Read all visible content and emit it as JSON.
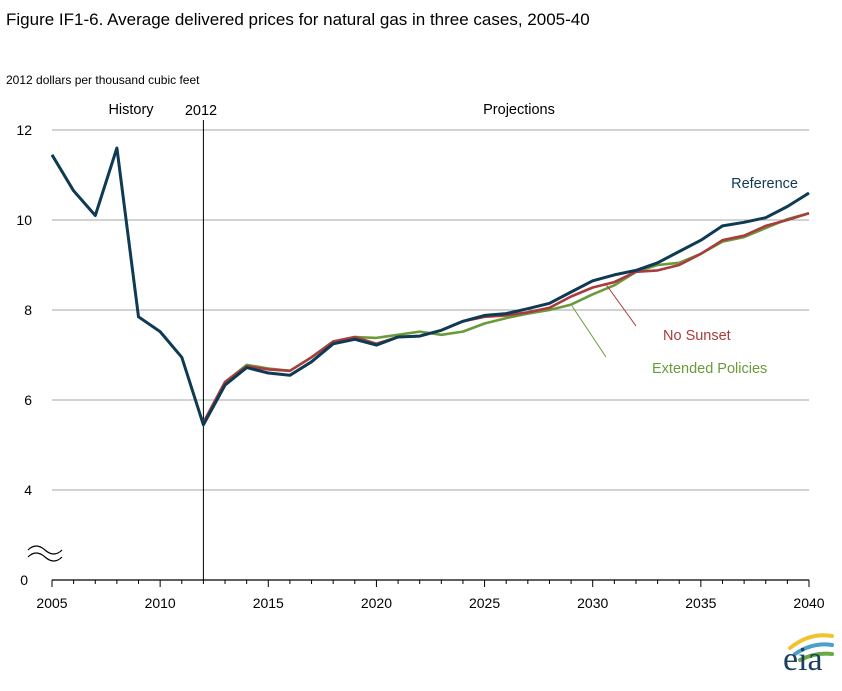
{
  "title": "Figure IF1-6. Average delivered prices for natural gas in three cases, 2005-40",
  "units_label": "2012 dollars per thousand cubic feet",
  "logo_text": "eia",
  "chart_data": {
    "type": "line",
    "xlim": [
      2005,
      2040
    ],
    "ylim": [
      0,
      12
    ],
    "axis_break": true,
    "x_ticks": [
      2005,
      2010,
      2015,
      2020,
      2025,
      2030,
      2035,
      2040
    ],
    "y_ticks": [
      0,
      4,
      6,
      8,
      10,
      12
    ],
    "grid": "horizontal",
    "divider": {
      "x": 2012,
      "label": "2012"
    },
    "period_labels": {
      "history": "History",
      "projections": "Projections"
    },
    "colors": {
      "reference": "#0e3a54",
      "no_sunset": "#a83c3e",
      "extended_policies": "#6a9a3a"
    },
    "series": [
      {
        "name": "Extended Policies",
        "x": [
          2012,
          2013,
          2014,
          2015,
          2016,
          2017,
          2018,
          2019,
          2020,
          2021,
          2022,
          2023,
          2024,
          2025,
          2026,
          2027,
          2028,
          2029,
          2030,
          2031,
          2032,
          2033,
          2034,
          2035,
          2036,
          2037,
          2038,
          2039,
          2040
        ],
        "values": [
          5.5,
          6.4,
          6.78,
          6.7,
          6.65,
          6.95,
          7.3,
          7.4,
          7.38,
          7.45,
          7.52,
          7.45,
          7.52,
          7.7,
          7.82,
          7.92,
          8.0,
          8.12,
          8.35,
          8.55,
          8.85,
          9.0,
          9.05,
          9.25,
          9.52,
          9.62,
          9.82,
          10.02,
          10.15
        ]
      },
      {
        "name": "No Sunset",
        "x": [
          2012,
          2013,
          2014,
          2015,
          2016,
          2017,
          2018,
          2019,
          2020,
          2021,
          2022,
          2023,
          2024,
          2025,
          2026,
          2027,
          2028,
          2029,
          2030,
          2031,
          2032,
          2033,
          2034,
          2035,
          2036,
          2037,
          2038,
          2039,
          2040
        ],
        "values": [
          5.5,
          6.4,
          6.75,
          6.68,
          6.65,
          6.95,
          7.3,
          7.4,
          7.25,
          7.4,
          7.42,
          7.55,
          7.75,
          7.85,
          7.88,
          7.95,
          8.05,
          8.3,
          8.5,
          8.62,
          8.85,
          8.88,
          9.0,
          9.25,
          9.55,
          9.65,
          9.87,
          10.0,
          10.15
        ]
      },
      {
        "name": "Reference",
        "x": [
          2005,
          2006,
          2007,
          2008,
          2009,
          2010,
          2011,
          2012,
          2013,
          2014,
          2015,
          2016,
          2017,
          2018,
          2019,
          2020,
          2021,
          2022,
          2023,
          2024,
          2025,
          2026,
          2027,
          2028,
          2029,
          2030,
          2031,
          2032,
          2033,
          2034,
          2035,
          2036,
          2037,
          2038,
          2039,
          2040
        ],
        "values": [
          11.45,
          10.65,
          10.1,
          11.6,
          7.85,
          7.52,
          6.95,
          5.45,
          6.33,
          6.72,
          6.6,
          6.55,
          6.85,
          7.25,
          7.35,
          7.22,
          7.4,
          7.42,
          7.55,
          7.75,
          7.88,
          7.92,
          8.03,
          8.15,
          8.4,
          8.65,
          8.78,
          8.88,
          9.05,
          9.3,
          9.55,
          9.87,
          9.95,
          10.05,
          10.3,
          10.6
        ]
      }
    ],
    "series_labels": {
      "reference": "Reference",
      "no_sunset": "No Sunset",
      "extended_policies": "Extended Policies"
    }
  }
}
